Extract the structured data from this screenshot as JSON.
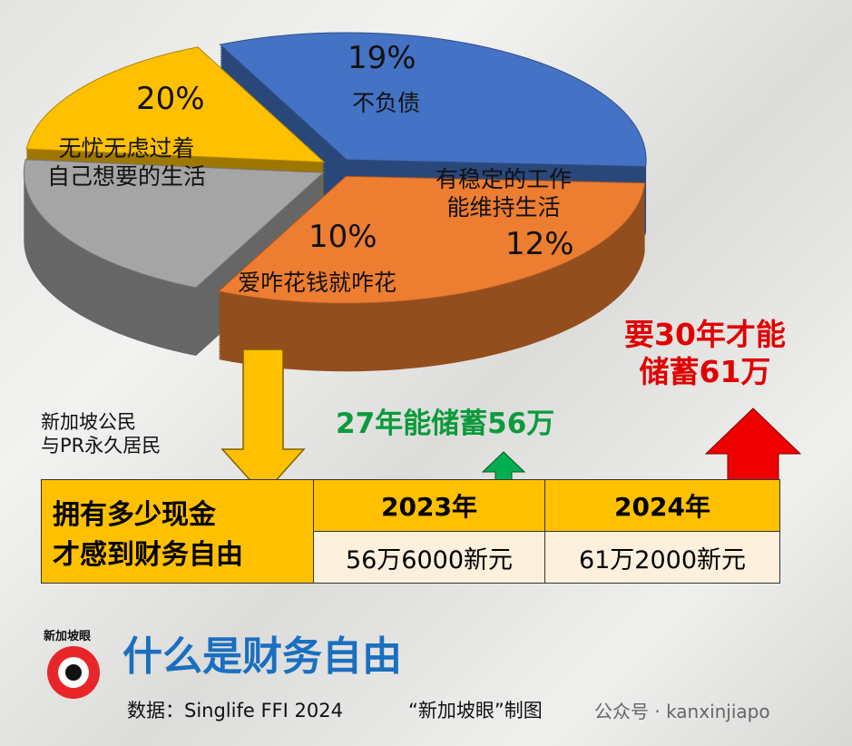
{
  "chart_data": {
    "type": "pie",
    "categories": [
      "无忧无虑过着\n自己想要的生活",
      "不负债",
      "有稳定的工作\n能维持生活",
      "爱咋花钱就咋花"
    ],
    "values": [
      20,
      19,
      12,
      10
    ],
    "value_labels": [
      "20%",
      "19%",
      "12%",
      "10%"
    ],
    "colors": [
      "#4472c4",
      "#ed7d31",
      "#a5a5a5",
      "#ffc000"
    ]
  },
  "note": "新加坡公民\n与PR永久居民",
  "table": {
    "header": "拥有多少现金\n才感到财务自由",
    "columns": [
      "2023年",
      "2024年"
    ],
    "values": [
      "56万6000新元",
      "61万2000新元"
    ]
  },
  "callouts": [
    "27年能储蓄56万",
    "要30年才能\n储蓄61万"
  ],
  "title": "什么是财务自由",
  "source": "数据：Singlife FFI 2024",
  "credit": "“新加坡眼”制图",
  "watermark": "公众号 · kanxinjiapo",
  "logo": "新加坡眼"
}
